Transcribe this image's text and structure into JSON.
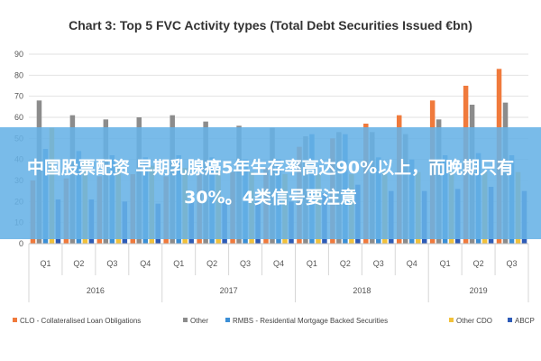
{
  "colors": {
    "clo": "#f07a3c",
    "other": "#8c8c8c",
    "rmbs": "#3c8fd6",
    "other_cdo": "#f2c13a",
    "abcp": "#2e5cb8",
    "banner": "#66b2e6"
  },
  "banner": {
    "text": "中国股票配资 早期乳腺癌5年生存率高达90%以上，而晚期只有30%。4类信号要注意"
  },
  "chart_data": {
    "type": "bar",
    "title": "Chart 3: Top 5 FVC Activity types (Total Debt Securities Issued €bn)",
    "xlabel": "",
    "ylabel": "",
    "ylim": [
      0,
      90
    ],
    "yticks": [
      0,
      10,
      20,
      30,
      40,
      50,
      60,
      70,
      80,
      90
    ],
    "grid": true,
    "legend_position": "bottom",
    "categories": [
      "Q1",
      "Q2",
      "Q3",
      "Q4",
      "Q1",
      "Q2",
      "Q3",
      "Q4",
      "Q1",
      "Q2",
      "Q3",
      "Q4",
      "Q1",
      "Q2",
      "Q3"
    ],
    "years": [
      {
        "label": "2016",
        "span": 4
      },
      {
        "label": "2017",
        "span": 4
      },
      {
        "label": "2018",
        "span": 4
      },
      {
        "label": "2019",
        "span": 3
      }
    ],
    "series": [
      {
        "name": "CLO - Collateralised Loan Obligations",
        "color_key": "clo",
        "values": [
          30,
          31,
          32,
          33,
          32,
          33,
          34,
          36,
          46,
          50,
          57,
          61,
          68,
          75,
          83
        ]
      },
      {
        "name": "Other",
        "color_key": "other",
        "values": [
          68,
          61,
          59,
          60,
          61,
          58,
          56,
          55,
          51,
          53,
          53,
          52,
          59,
          66,
          67
        ]
      },
      {
        "name": "RMBS - Residential Mortgage Backed Securities",
        "color_key": "rmbs",
        "values": [
          45,
          44,
          42,
          41,
          42,
          41,
          40,
          40,
          52,
          52,
          41,
          40,
          42,
          43,
          42
        ]
      },
      {
        "name": "Other CDO",
        "color_key": "other_cdo",
        "values": [
          55,
          40,
          38,
          37,
          36,
          35,
          34,
          33,
          33,
          33,
          34,
          34,
          34,
          34,
          34
        ]
      },
      {
        "name": "ABCP",
        "color_key": "abcp",
        "values": [
          21,
          21,
          20,
          19,
          20,
          21,
          21,
          20,
          24,
          28,
          25,
          25,
          26,
          27,
          25
        ]
      }
    ]
  }
}
